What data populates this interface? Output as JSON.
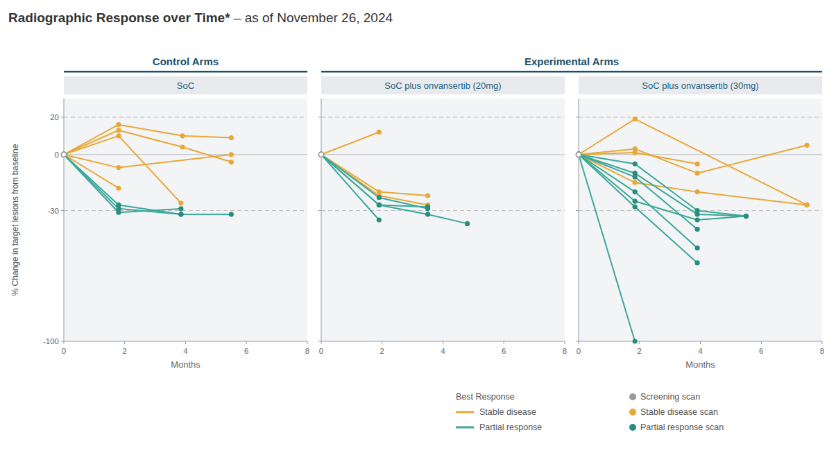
{
  "chart_data": {
    "type": "line",
    "title": "Radiographic Response over Time*",
    "subtitle": " – as of November 26, 2024",
    "ylabel": "% Change in target lesions from baseline",
    "xlim": [
      0,
      8
    ],
    "ylim": [
      -100,
      30
    ],
    "xticks": [
      0,
      2,
      4,
      6,
      8
    ],
    "yticks": [
      -100,
      -30,
      0,
      20
    ],
    "reference_lines": [
      {
        "value": 0,
        "line_style": "solid"
      },
      {
        "value": 20,
        "line_style": "dashed"
      },
      {
        "value": -30,
        "line_style": "dashed"
      }
    ],
    "annotations": [
      {
        "text": "Control Arms",
        "panels": [
          0
        ]
      },
      {
        "text": "Experimental Arms",
        "panels": [
          1,
          2
        ]
      }
    ],
    "legend": "lower right",
    "legend_title": "Best Response",
    "legend_entries": [
      {
        "name": "Stable disease",
        "color": "#e8a838",
        "marker": "line"
      },
      {
        "name": "Partial response",
        "color": "#3aa89a",
        "marker": "line"
      },
      {
        "name": "Screening scan",
        "color": "#999999",
        "marker": "circle"
      },
      {
        "name": "Stable disease scan",
        "color": "#e8a838",
        "marker": "circle"
      },
      {
        "name": "Partial response scan",
        "color": "#2a8c80",
        "marker": "circle"
      }
    ],
    "panels": [
      {
        "title": "SoC",
        "xlabel": "Months",
        "series": [
          {
            "name": "Stable disease",
            "color": "#e8a838",
            "colors": [
              "#999999",
              "#e8a838",
              "#e8a838",
              "#e8a838"
            ],
            "x": [
              0,
              1.8,
              3.9,
              5.5
            ],
            "values": [
              0,
              16,
              10,
              9
            ]
          },
          {
            "name": "Stable disease",
            "color": "#e8a838",
            "colors": [
              "#999999",
              "#e8a838",
              "#e8a838",
              "#e8a838"
            ],
            "x": [
              0,
              1.8,
              3.9,
              5.5
            ],
            "values": [
              0,
              13,
              4,
              -4
            ]
          },
          {
            "name": "Stable disease",
            "color": "#e8a838",
            "colors": [
              "#999999",
              "#e8a838",
              "#e8a838"
            ],
            "x": [
              0,
              1.8,
              3.85
            ],
            "values": [
              0,
              10,
              -26
            ]
          },
          {
            "name": "Stable disease",
            "color": "#e8a838",
            "colors": [
              "#999999",
              "#e8a838",
              "#e8a838"
            ],
            "x": [
              0,
              1.8,
              5.5
            ],
            "values": [
              0,
              -7,
              0
            ]
          },
          {
            "name": "Stable disease",
            "color": "#e8a838",
            "colors": [
              "#999999",
              "#e8a838"
            ],
            "x": [
              0,
              1.8
            ],
            "values": [
              0,
              -18
            ]
          },
          {
            "name": "Partial response",
            "color": "#3aa89a",
            "colors": [
              "#999999",
              "#2a8c80",
              "#2a8c80",
              "#2a8c80"
            ],
            "x": [
              0,
              1.8,
              3.85,
              5.5
            ],
            "values": [
              0,
              -27,
              -32,
              -32
            ]
          },
          {
            "name": "Partial response",
            "color": "#3aa89a",
            "colors": [
              "#999999",
              "#2a8c80",
              "#2a8c80"
            ],
            "x": [
              0,
              1.8,
              3.85
            ],
            "values": [
              0,
              -29,
              -32
            ]
          },
          {
            "name": "Partial response",
            "color": "#3aa89a",
            "colors": [
              "#999999",
              "#2a8c80",
              "#2a8c80"
            ],
            "x": [
              0,
              1.8,
              3.85
            ],
            "values": [
              0,
              -31,
              -29
            ]
          }
        ]
      },
      {
        "title": "SoC plus onvansertib (20mg)",
        "tick_labels": "x",
        "series": [
          {
            "name": "Stable disease",
            "color": "#e8a838",
            "colors": [
              "#999999",
              "#e8a838"
            ],
            "x": [
              0,
              1.9
            ],
            "values": [
              0,
              12
            ]
          },
          {
            "name": "Stable disease",
            "color": "#e8a838",
            "colors": [
              "#999999",
              "#e8a838",
              "#e8a838"
            ],
            "x": [
              0,
              1.9,
              3.5
            ],
            "values": [
              0,
              -20,
              -22
            ]
          },
          {
            "name": "Stable disease",
            "color": "#e8a838",
            "colors": [
              "#999999",
              "#e8a838",
              "#e8a838"
            ],
            "x": [
              0,
              1.9,
              3.5
            ],
            "values": [
              0,
              -22,
              -27
            ]
          },
          {
            "name": "Partial response",
            "color": "#3aa89a",
            "colors": [
              "#999999",
              "#2a8c80",
              "#2a8c80",
              "#2a8c80"
            ],
            "x": [
              0,
              1.9,
              3.5,
              4.8
            ],
            "values": [
              0,
              -27,
              -32,
              -37
            ]
          },
          {
            "name": "Partial response",
            "color": "#3aa89a",
            "colors": [
              "#999999",
              "#2a8c80",
              "#2a8c80"
            ],
            "x": [
              0,
              1.9,
              3.5
            ],
            "values": [
              0,
              -23,
              -29
            ]
          },
          {
            "name": "Partial response",
            "color": "#3aa89a",
            "colors": [
              "#999999",
              "#2a8c80",
              "#2a8c80"
            ],
            "x": [
              0,
              1.9,
              3.5
            ],
            "values": [
              0,
              -27,
              -28
            ]
          },
          {
            "name": "Partial response",
            "color": "#3aa89a",
            "colors": [
              "#999999",
              "#2a8c80"
            ],
            "x": [
              0,
              1.9
            ],
            "values": [
              0,
              -35
            ]
          }
        ]
      },
      {
        "title": "SoC plus onvansertib (30mg)",
        "xlabel": "Months",
        "tick_labels": "x",
        "series": [
          {
            "name": "Stable disease",
            "color": "#e8a838",
            "colors": [
              "#999999",
              "#e8a838",
              "#e8a838"
            ],
            "x": [
              0,
              1.85,
              7.5
            ],
            "values": [
              0,
              19,
              -27
            ]
          },
          {
            "name": "Stable disease",
            "color": "#e8a838",
            "colors": [
              "#999999",
              "#e8a838",
              "#e8a838",
              "#e8a838"
            ],
            "x": [
              0,
              1.85,
              3.9,
              7.5
            ],
            "values": [
              0,
              3,
              -10,
              5
            ]
          },
          {
            "name": "Stable disease",
            "color": "#e8a838",
            "colors": [
              "#999999",
              "#e8a838",
              "#e8a838",
              "#e8a838"
            ],
            "x": [
              0,
              1.85,
              3.9,
              7.5
            ],
            "values": [
              0,
              -15,
              -20,
              -27
            ]
          },
          {
            "name": "Stable disease",
            "color": "#e8a838",
            "colors": [
              "#999999",
              "#e8a838",
              "#e8a838"
            ],
            "x": [
              0,
              1.85,
              3.9
            ],
            "values": [
              0,
              1,
              -5
            ]
          },
          {
            "name": "Partial response",
            "color": "#3aa89a",
            "colors": [
              "#999999",
              "#2a8c80"
            ],
            "x": [
              0,
              1.85
            ],
            "values": [
              0,
              -100
            ]
          },
          {
            "name": "Partial response",
            "color": "#3aa89a",
            "colors": [
              "#999999",
              "#2a8c80",
              "#2a8c80",
              "#2a8c80"
            ],
            "x": [
              0,
              1.85,
              3.9,
              5.5
            ],
            "values": [
              0,
              -5,
              -30,
              -33
            ]
          },
          {
            "name": "Partial response",
            "color": "#3aa89a",
            "colors": [
              "#999999",
              "#2a8c80",
              "#2a8c80",
              "#2a8c80"
            ],
            "x": [
              0,
              1.85,
              3.9,
              5.5
            ],
            "values": [
              0,
              -10,
              -32,
              -33
            ]
          },
          {
            "name": "Partial response",
            "color": "#3aa89a",
            "colors": [
              "#999999",
              "#2a8c80",
              "#2a8c80"
            ],
            "x": [
              0,
              1.85,
              3.9
            ],
            "values": [
              0,
              -12,
              -40
            ]
          },
          {
            "name": "Partial response",
            "color": "#3aa89a",
            "colors": [
              "#999999",
              "#2a8c80",
              "#2a8c80"
            ],
            "x": [
              0,
              1.85,
              3.9
            ],
            "values": [
              0,
              -20,
              -50
            ]
          },
          {
            "name": "Partial response",
            "color": "#3aa89a",
            "colors": [
              "#999999",
              "#2a8c80",
              "#2a8c80",
              "#2a8c80"
            ],
            "x": [
              0,
              1.85,
              3.9,
              5.5
            ],
            "values": [
              0,
              -25,
              -35,
              -33
            ]
          },
          {
            "name": "Partial response",
            "color": "#3aa89a",
            "colors": [
              "#999999",
              "#2a8c80",
              "#2a8c80"
            ],
            "x": [
              0,
              1.85,
              3.9
            ],
            "values": [
              0,
              -28,
              -58
            ]
          }
        ]
      }
    ]
  }
}
